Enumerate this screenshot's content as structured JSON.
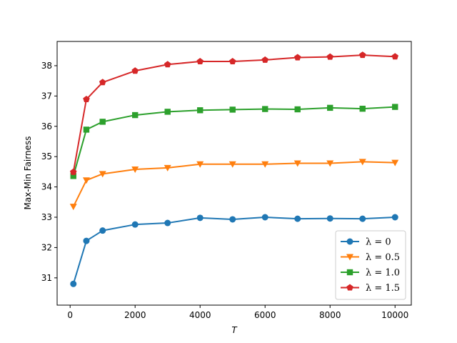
{
  "chart_data": {
    "type": "line",
    "xlabel": "T",
    "ylabel": "Max-Min Fairness",
    "xlim": [
      -400,
      10500
    ],
    "ylim": [
      30.1,
      38.8
    ],
    "xticks": [
      0,
      2000,
      4000,
      6000,
      8000,
      10000
    ],
    "yticks": [
      31,
      32,
      33,
      34,
      35,
      36,
      37,
      38
    ],
    "legend_position": "lower-right",
    "grid": false,
    "x": [
      100,
      500,
      1000,
      2000,
      3000,
      4000,
      5000,
      6000,
      7000,
      8000,
      9000,
      10000
    ],
    "series": [
      {
        "name": "λ = 0",
        "color": "#1f77b4",
        "marker": "circle",
        "values": [
          30.8,
          32.22,
          32.56,
          32.76,
          32.81,
          32.98,
          32.93,
          33.0,
          32.95,
          32.96,
          32.95,
          33.0
        ]
      },
      {
        "name": "λ = 0.5",
        "color": "#ff7f0e",
        "marker": "triangle-down",
        "values": [
          33.35,
          34.22,
          34.43,
          34.58,
          34.63,
          34.75,
          34.75,
          34.75,
          34.78,
          34.78,
          34.83,
          34.8
        ]
      },
      {
        "name": "λ = 1.0",
        "color": "#2ca02c",
        "marker": "square",
        "values": [
          34.36,
          35.89,
          36.15,
          36.37,
          36.48,
          36.53,
          36.55,
          36.57,
          36.56,
          36.61,
          36.58,
          36.64
        ]
      },
      {
        "name": "λ = 1.5",
        "color": "#d62728",
        "marker": "pentagon",
        "values": [
          34.49,
          36.89,
          37.45,
          37.83,
          38.04,
          38.14,
          38.14,
          38.19,
          38.27,
          38.29,
          38.35,
          38.3
        ]
      }
    ]
  }
}
